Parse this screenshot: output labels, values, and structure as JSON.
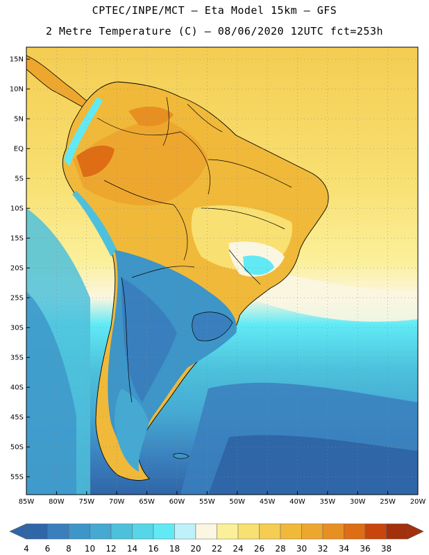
{
  "header": {
    "line1": "CPTEC/INPE/MCT –  Eta Model 15km – GFS",
    "line2": "2 Metre Temperature (C) – 08/06/2020 12UTC fct=253h"
  },
  "map": {
    "lat_labels": [
      "15N",
      "10N",
      "5N",
      "EQ",
      "5S",
      "10S",
      "15S",
      "20S",
      "25S",
      "30S",
      "35S",
      "40S",
      "45S",
      "50S",
      "55S"
    ],
    "lon_labels": [
      "85W",
      "80W",
      "75W",
      "70W",
      "65W",
      "60W",
      "55W",
      "50W",
      "45W",
      "40W",
      "35W",
      "30W",
      "25W",
      "20W"
    ],
    "lat_range": [
      -58,
      17
    ],
    "lon_range": [
      -85,
      -20
    ]
  },
  "colorbar": {
    "labels": [
      "4",
      "6",
      "8",
      "10",
      "12",
      "14",
      "16",
      "18",
      "20",
      "22",
      "24",
      "26",
      "28",
      "30",
      "32",
      "34",
      "36",
      "38"
    ],
    "colors": [
      "#2f66a8",
      "#3a7fbd",
      "#3d95c8",
      "#45a9d2",
      "#4dc1dc",
      "#56d6e8",
      "#61eaf5",
      "#bdf2fb",
      "#fbf6e1",
      "#fbf09a",
      "#f8e072",
      "#f4cd52",
      "#f0b93a",
      "#eea72e",
      "#e88f22",
      "#de6d14",
      "#c8450c",
      "#a3300c"
    ]
  },
  "colors": {
    "ocean_deep": "#2f66a8",
    "ocean_mid": "#45a9d2",
    "ocean_cyan": "#61eaf5",
    "tropic_warm": "#f8e072",
    "land_hot": "#eea72e"
  }
}
